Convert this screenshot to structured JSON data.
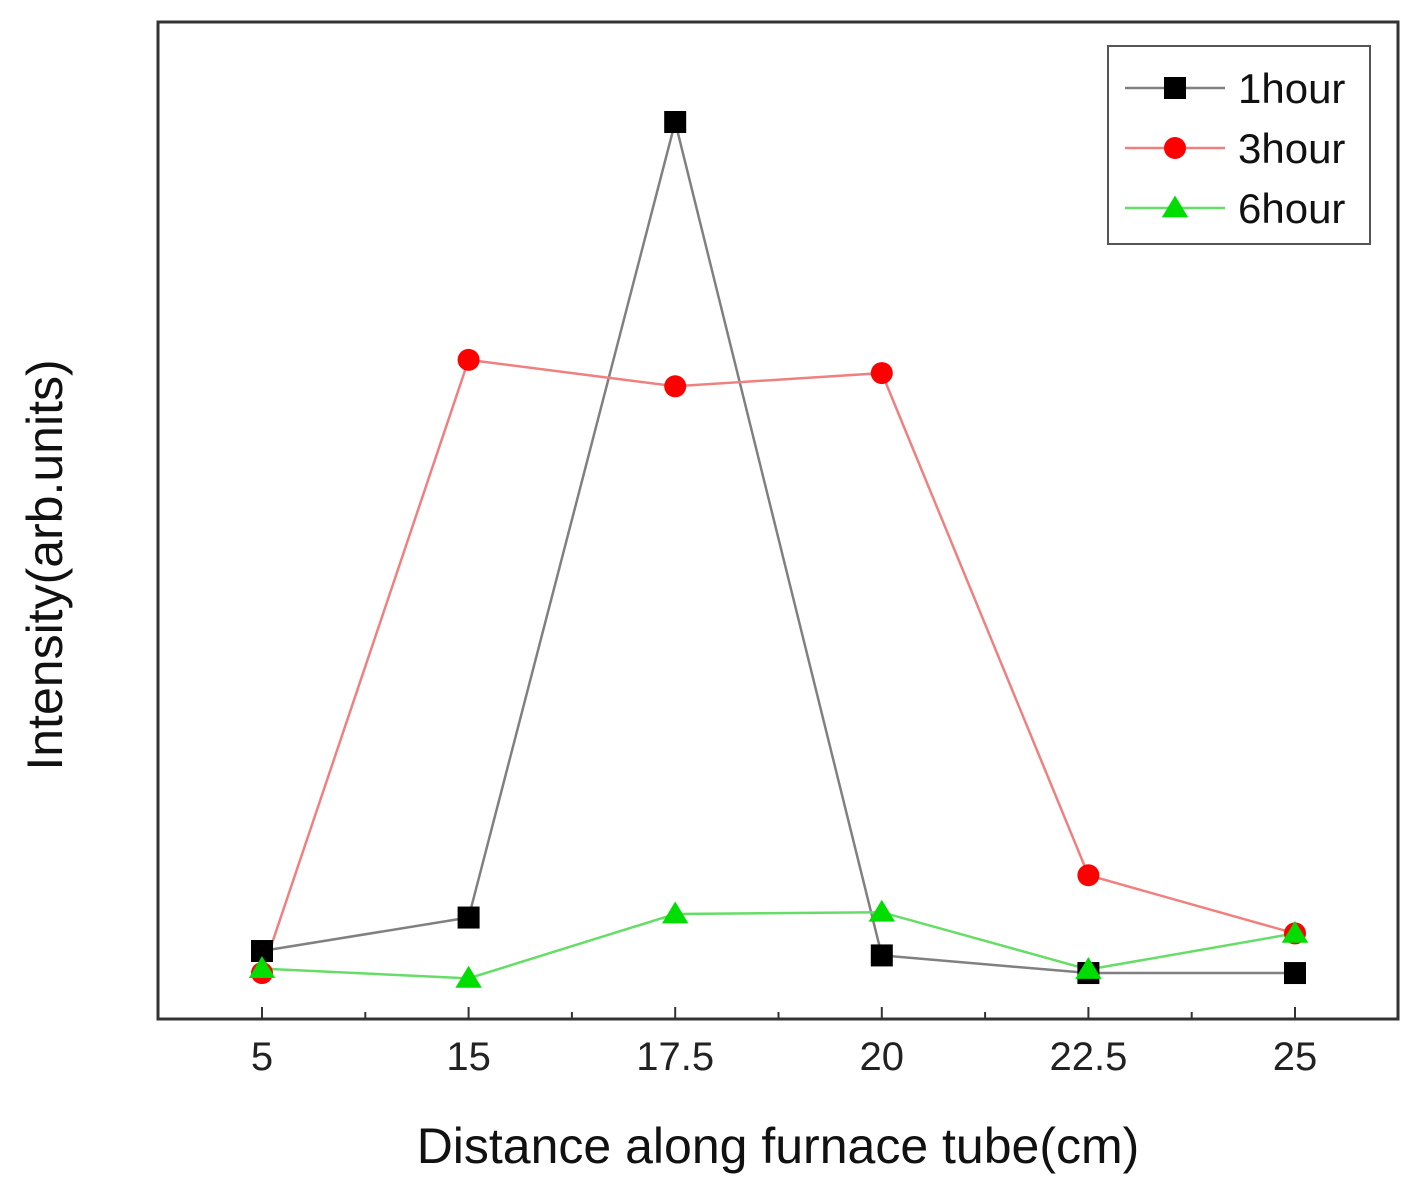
{
  "chart_data": {
    "type": "line",
    "title": "",
    "xlabel": "Distance along furnace tube(cm)",
    "ylabel": "Intensity(arb.units)",
    "categories": [
      "5",
      "15",
      "17.5",
      "20",
      "22.5",
      "25"
    ],
    "ylim": [
      0,
      100
    ],
    "legend_position": "top-right",
    "grid": false,
    "series": [
      {
        "name": "1hour",
        "color": "#808080",
        "marker_color": "#000000",
        "marker": "square",
        "values": [
          5.9,
          9.7,
          100,
          5.4,
          3.4,
          3.4
        ]
      },
      {
        "name": "3hour",
        "color": "#f08080",
        "marker_color": "#ff0000",
        "marker": "circle",
        "values": [
          3.4,
          73.0,
          70.0,
          71.5,
          14.5,
          7.9
        ]
      },
      {
        "name": "6hour",
        "color": "#66dd66",
        "marker_color": "#00dd00",
        "marker": "triangle",
        "values": [
          3.9,
          2.8,
          10.1,
          10.3,
          3.8,
          7.9
        ]
      }
    ]
  }
}
